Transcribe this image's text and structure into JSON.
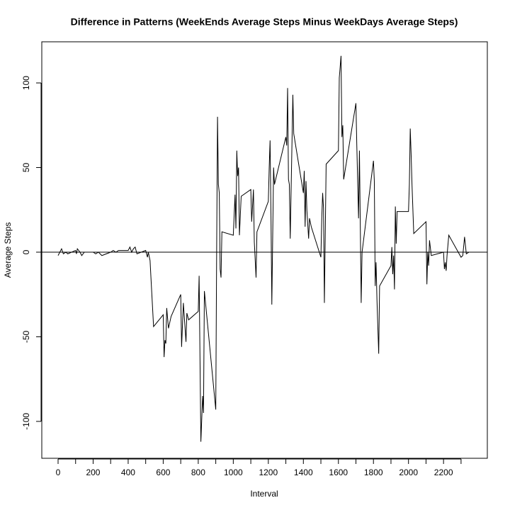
{
  "chart_data": {
    "type": "line",
    "title": "Difference in Patterns (WeekEnds Average Steps Minus WeekDays Average Steps)",
    "x_label": "Interval",
    "y_label": "Average Steps",
    "x": [
      0,
      10,
      20,
      30,
      45,
      55,
      100,
      105,
      110,
      125,
      135,
      150,
      200,
      215,
      230,
      250,
      300,
      315,
      330,
      345,
      400,
      410,
      420,
      430,
      440,
      450,
      500,
      510,
      515,
      525,
      530,
      545,
      600,
      605,
      610,
      615,
      620,
      630,
      645,
      700,
      705,
      715,
      730,
      735,
      745,
      800,
      805,
      815,
      825,
      830,
      835,
      900,
      905,
      910,
      915,
      920,
      925,
      930,
      935,
      1000,
      1010,
      1015,
      1020,
      1025,
      1030,
      1035,
      1045,
      1100,
      1105,
      1115,
      1120,
      1130,
      1135,
      1200,
      1205,
      1210,
      1215,
      1220,
      1230,
      1235,
      1300,
      1305,
      1310,
      1315,
      1320,
      1325,
      1340,
      1345,
      1400,
      1405,
      1410,
      1415,
      1420,
      1430,
      1435,
      1445,
      1500,
      1505,
      1510,
      1515,
      1520,
      1530,
      1600,
      1605,
      1615,
      1620,
      1625,
      1630,
      1700,
      1705,
      1715,
      1720,
      1730,
      1735,
      1800,
      1805,
      1810,
      1815,
      1820,
      1830,
      1835,
      1900,
      1905,
      1910,
      1915,
      1920,
      1925,
      1930,
      1935,
      2000,
      2005,
      2010,
      2015,
      2020,
      2030,
      2100,
      2105,
      2110,
      2115,
      2120,
      2130,
      2200,
      2205,
      2210,
      2215,
      2220,
      2230,
      2300,
      2310,
      2320,
      2330,
      2345,
      2355
    ],
    "values": [
      -2,
      0,
      2,
      -1,
      0,
      -1,
      1,
      -1,
      2,
      0,
      -2,
      0,
      0,
      -1,
      0,
      -2,
      0,
      1,
      0,
      1,
      1,
      3,
      0,
      2,
      3,
      -1,
      1,
      -3,
      0,
      -5,
      -15,
      -44,
      -37,
      -62,
      -52,
      -54,
      -33,
      -45,
      -38,
      -25,
      -56,
      -30,
      -53,
      -36,
      -40,
      -35,
      -14,
      -112,
      -85,
      -95,
      -23,
      -93,
      0,
      80,
      40,
      35,
      -10,
      -15,
      12,
      10,
      34,
      14,
      60,
      45,
      50,
      10,
      33,
      37,
      18,
      37,
      6,
      -15,
      12,
      30,
      50,
      66,
      23,
      -31,
      50,
      40,
      68,
      63,
      97,
      43,
      40,
      8,
      93,
      70,
      35,
      48,
      15,
      42,
      25,
      8,
      20,
      15,
      -3,
      20,
      35,
      26,
      -30,
      52,
      60,
      103,
      116,
      68,
      75,
      43,
      88,
      63,
      20,
      60,
      -30,
      0,
      54,
      42,
      -20,
      -6,
      -28,
      -60,
      -20,
      -8,
      3,
      -13,
      -2,
      -22,
      27,
      5,
      24,
      24,
      40,
      73,
      58,
      40,
      11,
      18,
      -19,
      0,
      -8,
      7,
      -2,
      0,
      -10,
      -6,
      -11,
      -2,
      10,
      -3,
      -2,
      9,
      -1,
      0,
      0
    ],
    "color": "#000000",
    "xlim": [
      -93,
      2450
    ],
    "ylim": [
      -121.8,
      124.3
    ],
    "xticks": [
      0,
      200,
      400,
      600,
      800,
      1000,
      1200,
      1400,
      1600,
      1800,
      2000,
      2200
    ],
    "xminorticks": [
      100,
      300,
      500,
      700,
      900,
      1100,
      1300,
      1500,
      1700,
      1900,
      2100,
      2300
    ],
    "yticks": [
      -100,
      -50,
      0,
      50,
      100
    ],
    "hline": 0
  }
}
